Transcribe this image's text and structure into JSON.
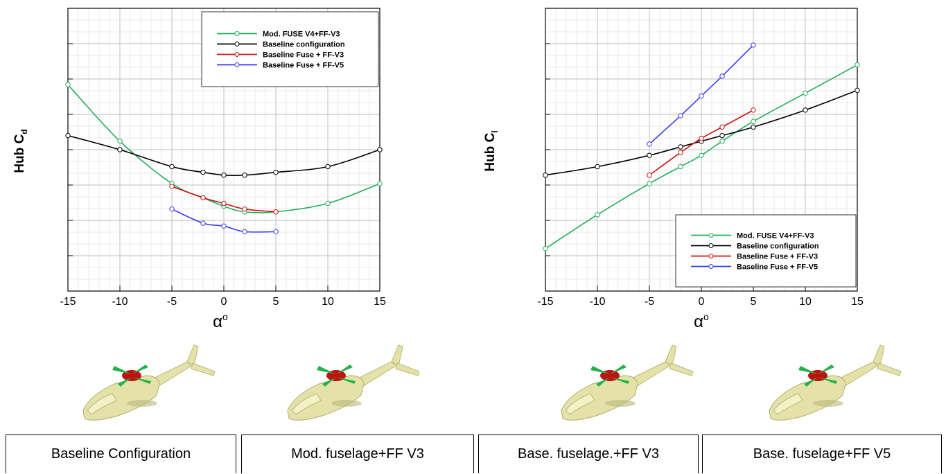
{
  "colors": {
    "green": "#1fae5a",
    "black": "#000000",
    "red": "#d01010",
    "blue": "#3a3af0",
    "grid_major": "#bfbfbf",
    "grid_minor": "#e2e2e2"
  },
  "chart_data": [
    {
      "type": "line",
      "ylabel": "Hub C",
      "ylabel_sub": "d",
      "xlabel": "α",
      "xlabel_sup": "o",
      "xlim": [
        -15,
        15
      ],
      "ylim": [
        0,
        1
      ],
      "yticks_labeled": false,
      "xticks": [
        "-15",
        "-10",
        "-5",
        "0",
        "5",
        "10",
        "15"
      ],
      "grid": true,
      "legend_position": "top-right",
      "series": [
        {
          "name": "Mod. FUSE V4+FF-V3",
          "color_key": "green",
          "x": [
            -15,
            -10,
            -5,
            -2,
            0,
            2,
            5,
            10,
            15
          ],
          "y": [
            0.73,
            0.53,
            0.38,
            0.33,
            0.3,
            0.28,
            0.28,
            0.31,
            0.38
          ]
        },
        {
          "name": "Baseline configuration",
          "color_key": "black",
          "x": [
            -15,
            -10,
            -5,
            -2,
            0,
            2,
            5,
            10,
            15
          ],
          "y": [
            0.55,
            0.5,
            0.44,
            0.42,
            0.41,
            0.41,
            0.42,
            0.44,
            0.5
          ]
        },
        {
          "name": "Baseline Fuse + FF-V3",
          "color_key": "red",
          "x": [
            -5,
            -2,
            0,
            2,
            5
          ],
          "y": [
            0.37,
            0.33,
            0.31,
            0.29,
            0.28
          ]
        },
        {
          "name": "Baseline Fuse + FF-V5",
          "color_key": "blue",
          "x": [
            -5,
            -2,
            0,
            2,
            5
          ],
          "y": [
            0.29,
            0.24,
            0.23,
            0.21,
            0.21
          ]
        }
      ]
    },
    {
      "type": "line",
      "ylabel": "Hub C",
      "ylabel_sub": "l",
      "xlabel": "α",
      "xlabel_sup": "o",
      "xlim": [
        -15,
        15
      ],
      "ylim": [
        0,
        1
      ],
      "yticks_labeled": false,
      "xticks": [
        "-15",
        "-10",
        "-5",
        "0",
        "5",
        "10",
        "15"
      ],
      "grid": true,
      "legend_position": "bottom-right",
      "series": [
        {
          "name": "Mod. FUSE V4+FF-V3",
          "color_key": "green",
          "x": [
            -15,
            -10,
            -5,
            -2,
            0,
            2,
            5,
            10,
            15
          ],
          "y": [
            0.15,
            0.27,
            0.38,
            0.44,
            0.48,
            0.53,
            0.6,
            0.7,
            0.8
          ]
        },
        {
          "name": "Baseline configuration",
          "color_key": "black",
          "x": [
            -15,
            -10,
            -5,
            -2,
            0,
            2,
            5,
            10,
            15
          ],
          "y": [
            0.41,
            0.44,
            0.48,
            0.51,
            0.53,
            0.55,
            0.58,
            0.64,
            0.71
          ]
        },
        {
          "name": "Baseline Fuse + FF-V3",
          "color_key": "red",
          "x": [
            -5,
            -2,
            0,
            2,
            5
          ],
          "y": [
            0.41,
            0.49,
            0.54,
            0.58,
            0.64
          ]
        },
        {
          "name": "Baseline Fuse + FF-V5",
          "color_key": "blue",
          "x": [
            -5,
            -2,
            0,
            2,
            5
          ],
          "y": [
            0.52,
            0.62,
            0.69,
            0.76,
            0.87
          ]
        }
      ]
    }
  ],
  "captions": [
    "Baseline Configuration",
    "Mod. fuselage+FF V3",
    "Base. fuselage.+FF V3",
    "Base. fuselage+FF V5"
  ],
  "illustrations": [
    {
      "name": "helicopter-baseline",
      "fuselage_color": "#e4e2a8",
      "hub_color": "#c01010",
      "blade_color": "#22b24a"
    },
    {
      "name": "helicopter-mod-ff-v3",
      "fuselage_color": "#e4e2a8",
      "hub_color": "#c01010",
      "blade_color": "#22b24a"
    },
    {
      "name": "helicopter-base-ff-v3",
      "fuselage_color": "#e4e2a8",
      "hub_color": "#c01010",
      "blade_color": "#22b24a"
    },
    {
      "name": "helicopter-base-ff-v5",
      "fuselage_color": "#e4e2a8",
      "hub_color": "#c01010",
      "blade_color": "#22b24a"
    }
  ]
}
